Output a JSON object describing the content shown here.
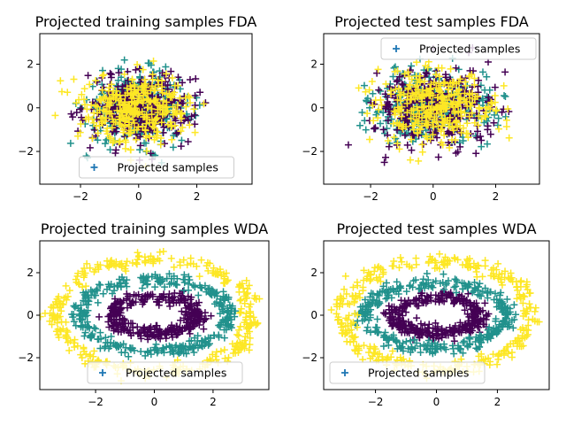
{
  "figure": {
    "panel_order": [
      "fda_train",
      "fda_test",
      "wda_train",
      "wda_test"
    ]
  },
  "colors": {
    "class_0": "#440154",
    "class_1": "#21918c",
    "class_2": "#fde725",
    "legend_marker": "#1f77b4"
  },
  "chart_data": [
    {
      "id": "fda_train",
      "type": "scatter",
      "title": "Projected training samples FDA",
      "marker": "plus",
      "xlim": [
        -3.4,
        3.9
      ],
      "ylim": [
        -3.5,
        3.4
      ],
      "xticks": [
        -2,
        0,
        2
      ],
      "yticks": [
        -2,
        0,
        2
      ],
      "grid": false,
      "legend": {
        "label": "Projected samples",
        "placement": "lower center"
      },
      "distribution": {
        "shape": "gaussian_blob",
        "center": [
          0.0,
          0.0
        ],
        "spread": [
          0.9,
          0.8
        ],
        "points_per_class": 330,
        "class_order": [
          1,
          0,
          2
        ]
      },
      "series": [
        {
          "name": "Projected samples",
          "class_colors": [
            "class_0",
            "class_1",
            "class_2"
          ],
          "values": []
        }
      ]
    },
    {
      "id": "fda_test",
      "type": "scatter",
      "title": "Projected test samples FDA",
      "marker": "plus",
      "xlim": [
        -3.5,
        3.4
      ],
      "ylim": [
        -3.5,
        3.4
      ],
      "xticks": [
        -2,
        0,
        2
      ],
      "yticks": [
        -2,
        0,
        2
      ],
      "grid": false,
      "legend": {
        "label": "Projected samples",
        "placement": "upper right"
      },
      "distribution": {
        "shape": "gaussian_blob",
        "center": [
          0.0,
          0.0
        ],
        "spread": [
          0.95,
          0.85
        ],
        "points_per_class": 330,
        "class_order": [
          1,
          0,
          2
        ]
      },
      "series": [
        {
          "name": "Projected samples",
          "class_colors": [
            "class_0",
            "class_1",
            "class_2"
          ],
          "values": []
        }
      ]
    },
    {
      "id": "wda_train",
      "type": "scatter",
      "title": "Projected training samples WDA",
      "marker": "plus",
      "xlim": [
        -3.9,
        3.9
      ],
      "ylim": [
        -3.5,
        3.5
      ],
      "xticks": [
        -2,
        0,
        2
      ],
      "yticks": [
        -2,
        0,
        2
      ],
      "grid": false,
      "legend": {
        "label": "Projected samples",
        "placement": "lower center"
      },
      "distribution": {
        "shape": "rings",
        "rings": [
          {
            "class": 0,
            "radius_x": 1.45,
            "radius_y": 0.85,
            "width": 0.35,
            "points": 330
          },
          {
            "class": 1,
            "radius_x": 2.55,
            "radius_y": 1.7,
            "width": 0.32,
            "points": 330
          },
          {
            "class": 2,
            "radius_x": 3.35,
            "radius_y": 2.65,
            "width": 0.38,
            "points": 330
          }
        ]
      },
      "series": [
        {
          "name": "Projected samples",
          "class_colors": [
            "class_0",
            "class_1",
            "class_2"
          ],
          "values": []
        }
      ]
    },
    {
      "id": "wda_test",
      "type": "scatter",
      "title": "Projected test samples WDA",
      "marker": "plus",
      "xlim": [
        -3.7,
        3.7
      ],
      "ylim": [
        -3.5,
        3.5
      ],
      "xticks": [
        -2,
        0,
        2
      ],
      "yticks": [
        -2,
        0,
        2
      ],
      "grid": false,
      "legend": {
        "label": "Projected samples",
        "placement": "lower left"
      },
      "distribution": {
        "shape": "rings",
        "rings": [
          {
            "class": 0,
            "radius_x": 1.45,
            "radius_y": 0.85,
            "width": 0.35,
            "points": 330
          },
          {
            "class": 1,
            "radius_x": 2.3,
            "radius_y": 1.55,
            "width": 0.32,
            "points": 330
          },
          {
            "class": 2,
            "radius_x": 3.1,
            "radius_y": 2.55,
            "width": 0.38,
            "points": 330
          }
        ]
      },
      "series": [
        {
          "name": "Projected samples",
          "class_colors": [
            "class_0",
            "class_1",
            "class_2"
          ],
          "values": []
        }
      ]
    }
  ]
}
